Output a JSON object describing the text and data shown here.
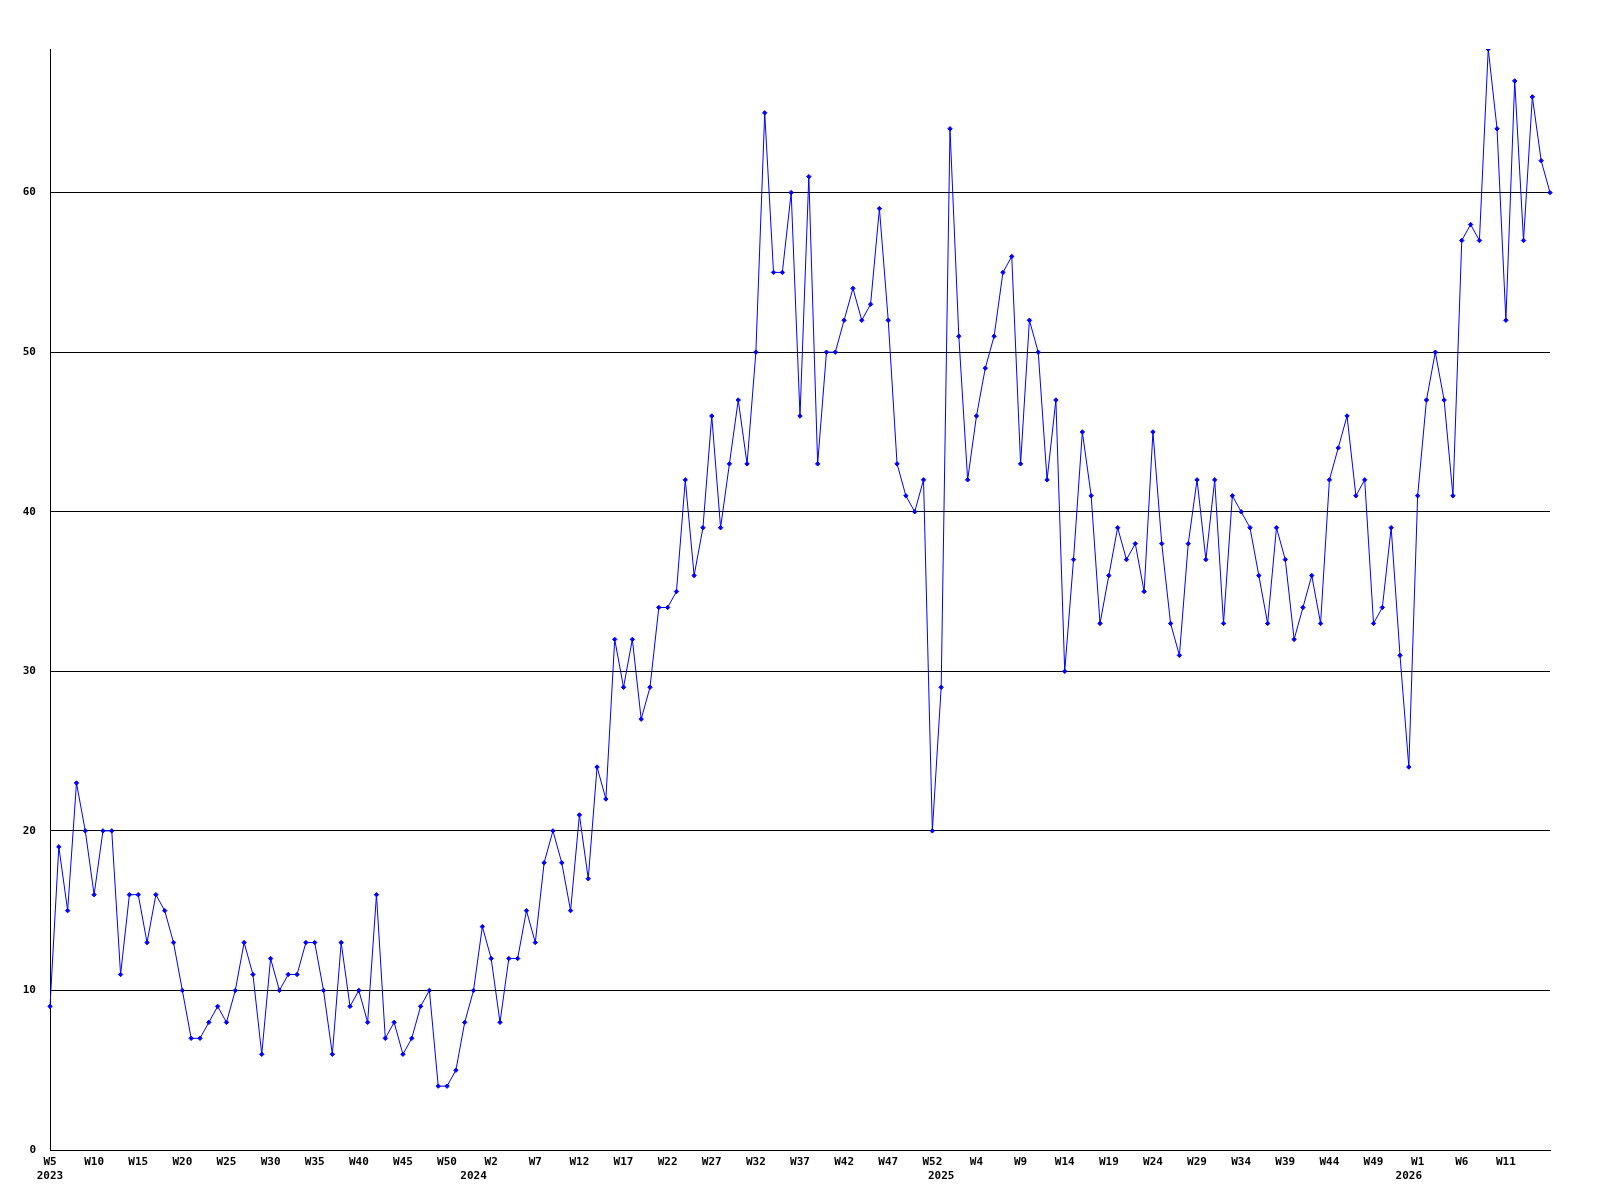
{
  "chart_data": {
    "type": "line",
    "categories": [
      "W5\n2023",
      null,
      null,
      null,
      null,
      "W10",
      null,
      null,
      null,
      null,
      "W15",
      null,
      null,
      null,
      null,
      "W20",
      null,
      null,
      null,
      null,
      "W25",
      null,
      null,
      null,
      null,
      "W30",
      null,
      null,
      null,
      null,
      "W35",
      null,
      null,
      null,
      null,
      "W40",
      null,
      null,
      null,
      null,
      "W45",
      null,
      null,
      null,
      null,
      "W50",
      null,
      null,
      "\n2024",
      null,
      "W2",
      null,
      null,
      null,
      null,
      "W7",
      null,
      null,
      null,
      null,
      "W12",
      null,
      null,
      null,
      null,
      "W17",
      null,
      null,
      null,
      null,
      "W22",
      null,
      null,
      null,
      null,
      "W27",
      null,
      null,
      null,
      null,
      "W32",
      null,
      null,
      null,
      null,
      "W37",
      null,
      null,
      null,
      null,
      "W42",
      null,
      null,
      null,
      null,
      "W47",
      null,
      null,
      null,
      null,
      "W52",
      "\n2025",
      null,
      null,
      null,
      "W4",
      null,
      null,
      null,
      null,
      "W9",
      null,
      null,
      null,
      null,
      "W14",
      null,
      null,
      null,
      null,
      "W19",
      null,
      null,
      null,
      null,
      "W24",
      null,
      null,
      null,
      null,
      "W29",
      null,
      null,
      null,
      null,
      "W34",
      null,
      null,
      null,
      null,
      "W39",
      null,
      null,
      null,
      null,
      "W44",
      null,
      null,
      null,
      null,
      "W49",
      null,
      null,
      null,
      "\n2026",
      "W1",
      null,
      null,
      null,
      null,
      "W6",
      null,
      null,
      null,
      null,
      "W11",
      null,
      null,
      null,
      null,
      null
    ],
    "values": [
      9,
      19,
      15,
      23,
      20,
      16,
      20,
      20,
      11,
      16,
      16,
      13,
      16,
      15,
      13,
      10,
      7,
      7,
      8,
      9,
      8,
      10,
      13,
      11,
      6,
      12,
      10,
      11,
      11,
      13,
      13,
      10,
      6,
      13,
      9,
      10,
      8,
      16,
      7,
      8,
      6,
      7,
      9,
      10,
      4,
      4,
      5,
      8,
      10,
      14,
      12,
      8,
      12,
      12,
      15,
      13,
      18,
      20,
      18,
      15,
      21,
      17,
      24,
      22,
      32,
      29,
      32,
      27,
      29,
      34,
      34,
      35,
      42,
      36,
      39,
      46,
      39,
      43,
      47,
      43,
      50,
      65,
      55,
      55,
      60,
      46,
      61,
      43,
      50,
      50,
      52,
      54,
      52,
      53,
      59,
      52,
      43,
      41,
      40,
      42,
      20,
      29,
      64,
      51,
      42,
      46,
      49,
      51,
      55,
      56,
      43,
      52,
      50,
      42,
      47,
      30,
      37,
      45,
      41,
      33,
      36,
      39,
      37,
      38,
      35,
      45,
      38,
      33,
      31,
      38,
      42,
      37,
      42,
      33,
      41,
      40,
      39,
      36,
      33,
      39,
      37,
      32,
      34,
      36,
      33,
      42,
      44,
      46,
      41,
      42,
      33,
      34,
      39,
      31,
      24,
      41,
      47,
      50,
      47,
      41,
      57,
      58,
      57,
      69,
      64,
      52,
      67,
      57,
      66,
      62,
      60
    ],
    "color": "#0000ff",
    "ylim": [
      0,
      69
    ],
    "yticks": [
      0,
      10,
      20,
      30,
      40,
      50,
      60
    ],
    "grid": "y",
    "marker": "diamond"
  }
}
